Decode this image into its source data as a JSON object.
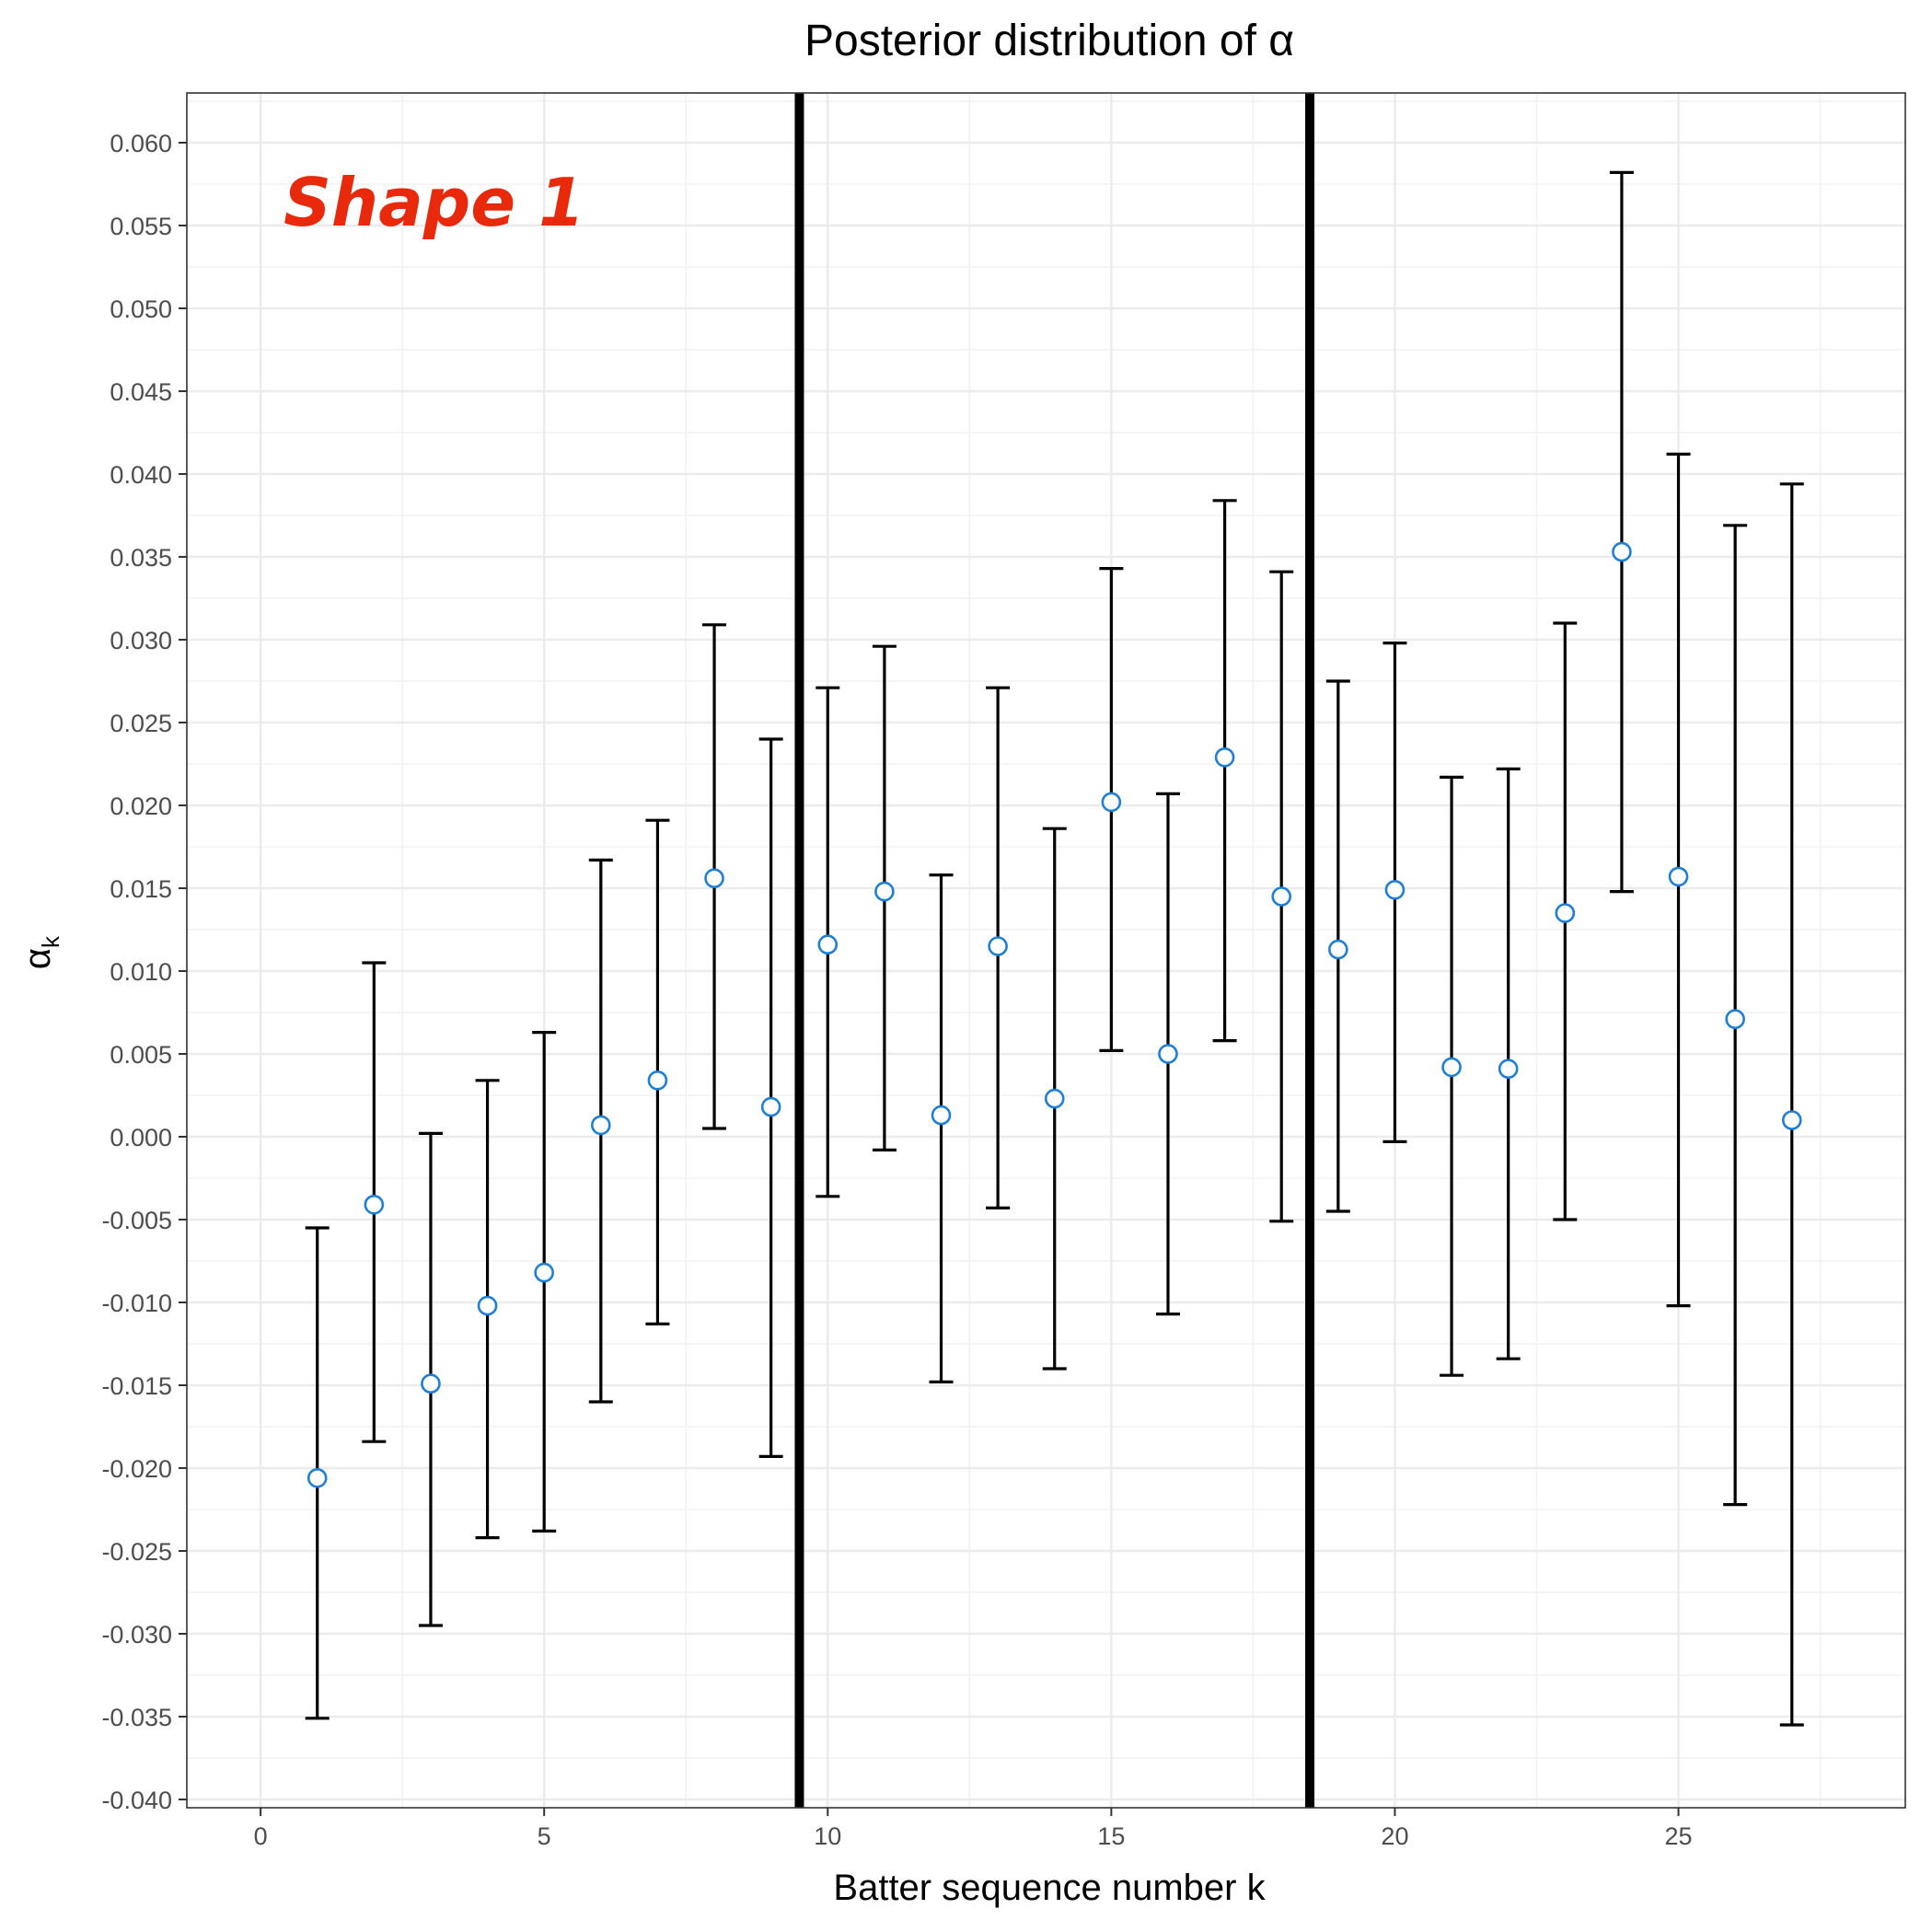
{
  "chart_data": {
    "type": "scatter",
    "title": "Posterior distribution of α",
    "xlabel": "Batter sequence number k",
    "ylabel": "α",
    "ylabel_subscript": "k",
    "xlim": [
      -1.3,
      29.0
    ],
    "ylim": [
      -0.0405,
      0.063
    ],
    "x_ticks": [
      0,
      5,
      10,
      15,
      20,
      25
    ],
    "x_tick_labels": [
      "0",
      "5",
      "10",
      "15",
      "20",
      "25"
    ],
    "y_ticks": [
      -0.04,
      -0.035,
      -0.03,
      -0.025,
      -0.02,
      -0.015,
      -0.01,
      -0.005,
      0.0,
      0.005,
      0.01,
      0.015,
      0.02,
      0.025,
      0.03,
      0.035,
      0.04,
      0.045,
      0.05,
      0.055,
      0.06
    ],
    "y_tick_labels": [
      "-0.040",
      "-0.035",
      "-0.030",
      "-0.025",
      "-0.020",
      "-0.015",
      "-0.010",
      "-0.005",
      "0.000",
      "0.005",
      "0.010",
      "0.015",
      "0.020",
      "0.025",
      "0.030",
      "0.035",
      "0.040",
      "0.045",
      "0.050",
      "0.055",
      "0.060"
    ],
    "grid": true,
    "vertical_lines": [
      9.5,
      18.5
    ],
    "annotation": {
      "text": "Shape 1",
      "color": "#e8290b"
    },
    "point_color": "#1e7fd6",
    "errorbar_color": "#000000",
    "points": [
      {
        "k": 1,
        "mean": -0.0206,
        "lower": -0.0351,
        "upper": -0.0055
      },
      {
        "k": 2,
        "mean": -0.0041,
        "lower": -0.0184,
        "upper": 0.0105
      },
      {
        "k": 3,
        "mean": -0.0149,
        "lower": -0.0295,
        "upper": 0.0002
      },
      {
        "k": 4,
        "mean": -0.0102,
        "lower": -0.0242,
        "upper": 0.0034
      },
      {
        "k": 5,
        "mean": -0.0082,
        "lower": -0.0238,
        "upper": 0.0063
      },
      {
        "k": 6,
        "mean": 0.0007,
        "lower": -0.016,
        "upper": 0.0167
      },
      {
        "k": 7,
        "mean": 0.0034,
        "lower": -0.0113,
        "upper": 0.0191
      },
      {
        "k": 8,
        "mean": 0.0156,
        "lower": 0.0005,
        "upper": 0.0309
      },
      {
        "k": 9,
        "mean": 0.0018,
        "lower": -0.0193,
        "upper": 0.024
      },
      {
        "k": 10,
        "mean": 0.0116,
        "lower": -0.0036,
        "upper": 0.0271
      },
      {
        "k": 11,
        "mean": 0.0148,
        "lower": -0.0008,
        "upper": 0.0296
      },
      {
        "k": 12,
        "mean": 0.0013,
        "lower": -0.0148,
        "upper": 0.0158
      },
      {
        "k": 13,
        "mean": 0.0115,
        "lower": -0.0043,
        "upper": 0.0271
      },
      {
        "k": 14,
        "mean": 0.0023,
        "lower": -0.014,
        "upper": 0.0186
      },
      {
        "k": 15,
        "mean": 0.0202,
        "lower": 0.0052,
        "upper": 0.0343
      },
      {
        "k": 16,
        "mean": 0.005,
        "lower": -0.0107,
        "upper": 0.0207
      },
      {
        "k": 17,
        "mean": 0.0229,
        "lower": 0.0058,
        "upper": 0.0384
      },
      {
        "k": 18,
        "mean": 0.0145,
        "lower": -0.0051,
        "upper": 0.0341
      },
      {
        "k": 19,
        "mean": 0.0113,
        "lower": -0.0045,
        "upper": 0.0275
      },
      {
        "k": 20,
        "mean": 0.0149,
        "lower": -0.0003,
        "upper": 0.0298
      },
      {
        "k": 21,
        "mean": 0.0042,
        "lower": -0.0144,
        "upper": 0.0217
      },
      {
        "k": 22,
        "mean": 0.0041,
        "lower": -0.0134,
        "upper": 0.0222
      },
      {
        "k": 23,
        "mean": 0.0135,
        "lower": -0.005,
        "upper": 0.031
      },
      {
        "k": 24,
        "mean": 0.0353,
        "lower": 0.0148,
        "upper": 0.0582
      },
      {
        "k": 25,
        "mean": 0.0157,
        "lower": -0.0102,
        "upper": 0.0412
      },
      {
        "k": 26,
        "mean": 0.0071,
        "lower": -0.0222,
        "upper": 0.0369
      },
      {
        "k": 27,
        "mean": 0.001,
        "lower": -0.0355,
        "upper": 0.0394
      }
    ]
  }
}
